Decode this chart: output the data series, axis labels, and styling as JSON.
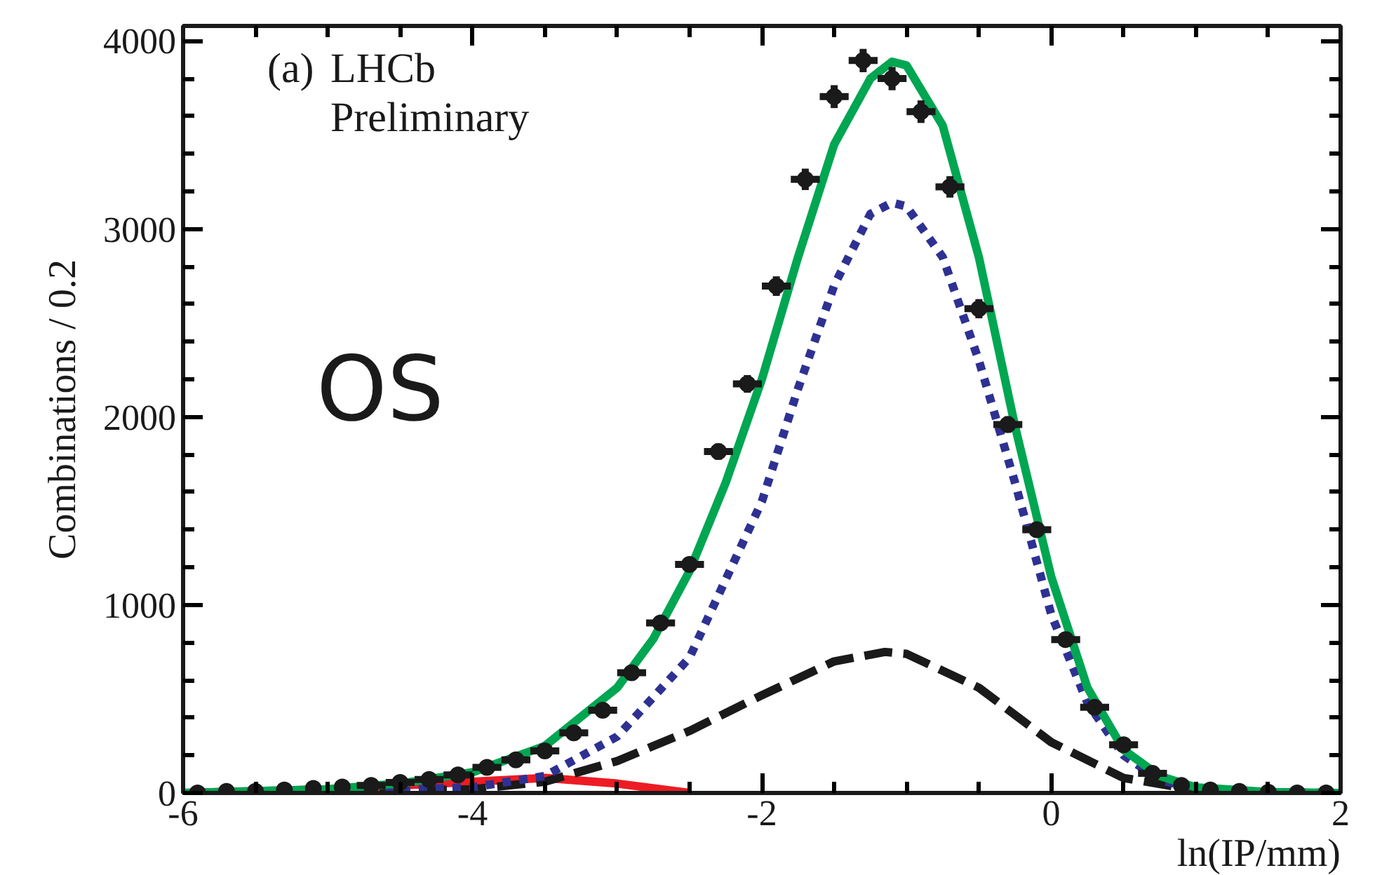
{
  "chart_data": {
    "type": "line",
    "xlabel": "ln(IP/mm)",
    "ylabel": "Combinations / 0.2",
    "annotations": [
      "(a)",
      "LHCb",
      "Preliminary",
      "OS"
    ],
    "xlim": [
      -6,
      2
    ],
    "ylim": [
      0,
      4080
    ],
    "xticks": [
      -6,
      -4,
      -2,
      0,
      2
    ],
    "yticks": [
      0,
      1000,
      2000,
      3000,
      4000
    ],
    "grid": false,
    "series": [
      {
        "color": "#ed1c24",
        "line_style": "solid",
        "x": [
          -6,
          -5,
          -4.5,
          -4,
          -3.5,
          -3,
          -2.5
        ],
        "values": [
          0,
          20,
          40,
          60,
          80,
          50,
          0
        ]
      },
      {
        "color": "#1a1a1a",
        "line_style": "dashed",
        "x": [
          -6,
          -5,
          -4,
          -3.5,
          -3,
          -2.5,
          -2,
          -1.5,
          -1.15,
          -1,
          -0.5,
          0,
          0.5,
          1,
          1.5,
          2
        ],
        "values": [
          0,
          0,
          20,
          60,
          170,
          330,
          520,
          700,
          750,
          740,
          560,
          270,
          80,
          15,
          0,
          0
        ]
      },
      {
        "color": "#2e3192",
        "line_style": "dotted",
        "x": [
          -6,
          -5,
          -4,
          -3.5,
          -3,
          -2.5,
          -2,
          -1.75,
          -1.5,
          -1.25,
          -1.1,
          -1,
          -0.75,
          -0.5,
          -0.25,
          0,
          0.25,
          0.5,
          0.75,
          1,
          1.5,
          2
        ],
        "values": [
          0,
          5,
          30,
          90,
          300,
          720,
          1550,
          2150,
          2700,
          3080,
          3140,
          3120,
          2850,
          2300,
          1650,
          950,
          480,
          200,
          70,
          20,
          3,
          0
        ]
      },
      {
        "color": "#00a651",
        "line_style": "solid",
        "x": [
          -6,
          -5,
          -4.5,
          -4,
          -3.5,
          -3,
          -2.75,
          -2.5,
          -2.25,
          -2,
          -1.75,
          -1.5,
          -1.25,
          -1.1,
          -1,
          -0.75,
          -0.5,
          -0.25,
          0,
          0.25,
          0.5,
          0.75,
          1,
          1.5,
          2
        ],
        "values": [
          0,
          20,
          50,
          110,
          250,
          560,
          820,
          1180,
          1650,
          2200,
          2850,
          3450,
          3800,
          3890,
          3870,
          3550,
          2850,
          1950,
          1150,
          560,
          230,
          90,
          30,
          5,
          0
        ]
      },
      {
        "type": "scatter",
        "color": "#1a1a1a",
        "marker": "circle",
        "x": [
          -5.9,
          -5.7,
          -5.5,
          -5.3,
          -5.1,
          -4.9,
          -4.7,
          -4.5,
          -4.3,
          -4.1,
          -3.9,
          -3.7,
          -3.5,
          -3.3,
          -3.1,
          -2.9,
          -2.7,
          -2.5,
          -2.3,
          -2.1,
          -1.9,
          -1.7,
          -1.5,
          -1.3,
          -1.1,
          -0.9,
          -0.7,
          -0.5,
          -0.3,
          -0.1,
          0.1,
          0.3,
          0.5,
          0.7,
          0.9,
          1.1,
          1.3,
          1.5,
          1.7,
          1.9
        ],
        "values": [
          0,
          8,
          8,
          16,
          24,
          32,
          40,
          56,
          72,
          96,
          136,
          176,
          224,
          320,
          440,
          640,
          904,
          1216,
          1816,
          2176,
          2696,
          3264,
          3704,
          3896,
          3800,
          3624,
          3224,
          2576,
          1960,
          1400,
          816,
          456,
          256,
          104,
          40,
          16,
          8,
          4,
          0,
          0
        ],
        "errors": [
          null,
          null,
          null,
          null,
          null,
          null,
          null,
          null,
          null,
          10,
          12,
          13,
          15,
          18,
          21,
          25,
          30,
          35,
          43,
          47,
          52,
          57,
          61,
          62,
          62,
          60,
          57,
          51,
          44,
          37,
          29,
          21,
          16,
          10,
          null,
          null,
          null,
          null,
          null,
          null
        ],
        "xerrors": [
          null,
          null,
          null,
          null,
          null,
          null,
          0.1,
          0.1,
          0.1,
          0.1,
          0.1,
          0.1,
          0.1,
          0.1,
          0.1,
          0.1,
          0.1,
          0.1,
          0.1,
          0.1,
          0.1,
          0.1,
          0.1,
          0.1,
          0.1,
          0.1,
          0.1,
          0.1,
          0.1,
          0.1,
          0.1,
          0.1,
          0.1,
          0.1,
          null,
          null,
          null,
          null,
          null,
          null
        ]
      }
    ]
  }
}
